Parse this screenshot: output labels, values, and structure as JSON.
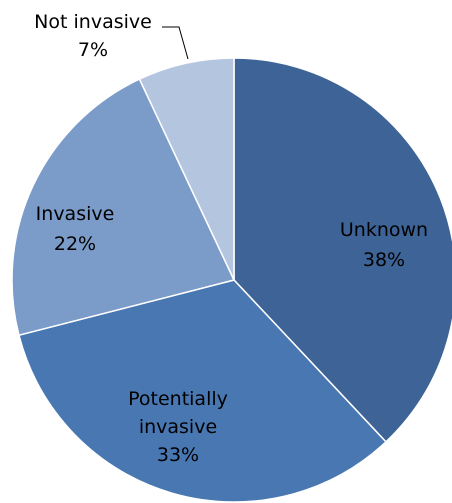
{
  "chart_data": {
    "type": "pie",
    "title": "",
    "slices": [
      {
        "label": "Unknown",
        "value": 38,
        "value_label": "38%",
        "color": "#3E6497"
      },
      {
        "label": "Potentially invasive",
        "label_lines": [
          "Potentially",
          "invasive"
        ],
        "value": 33,
        "value_label": "33%",
        "color": "#4877B2"
      },
      {
        "label": "Invasive",
        "value": 22,
        "value_label": "22%",
        "color": "#7B9BC9"
      },
      {
        "label": "Not invasive",
        "value": 7,
        "value_label": "7%",
        "color": "#B4C5E0"
      }
    ],
    "start_angle_deg": 0,
    "direction": "clockwise",
    "legend": "none"
  }
}
